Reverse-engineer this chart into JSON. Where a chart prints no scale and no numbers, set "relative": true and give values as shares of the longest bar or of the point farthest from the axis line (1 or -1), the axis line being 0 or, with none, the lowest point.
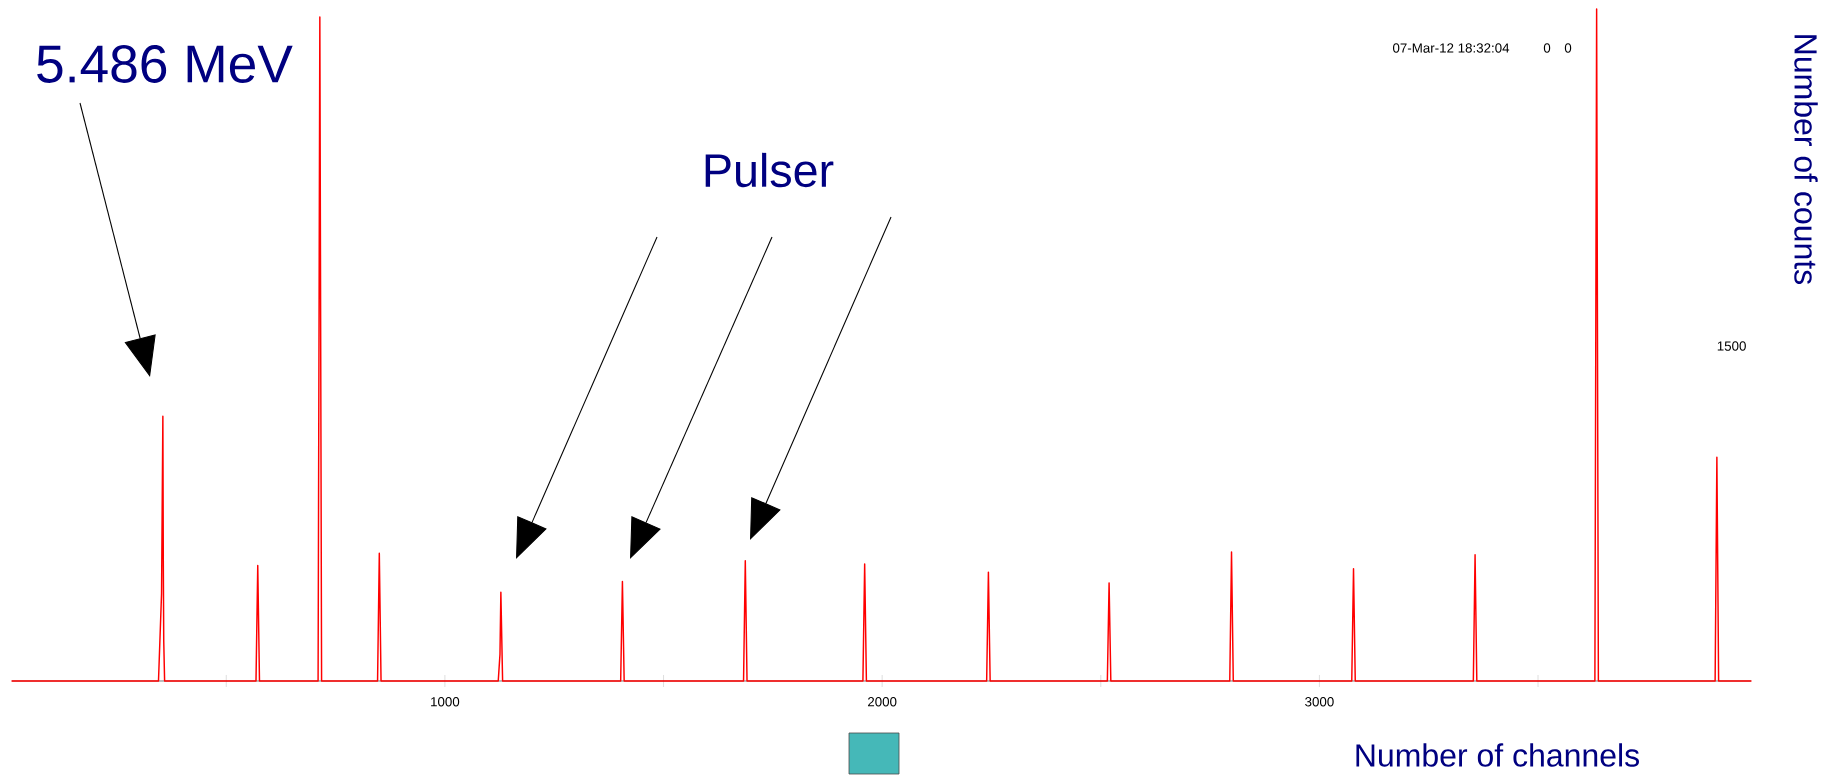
{
  "chart_data": {
    "type": "line",
    "relative": true,
    "xlabel": "Number of channels",
    "ylabel": "Number of counts",
    "xlim": [
      10,
      3987
    ],
    "xticks": [
      {
        "value": 500,
        "label": null
      },
      1000,
      {
        "value": 1500,
        "label": null
      },
      2000,
      {
        "value": 2500,
        "label": null
      },
      3000,
      {
        "value": 3500,
        "label": null
      }
    ],
    "annotations": [
      "5.486 MeV",
      "Pulser",
      "07-Mar-12 18:32:04",
      "0",
      "0",
      "1500"
    ],
    "series": [
      {
        "color": "#ff0000",
        "x": [
          10,
          345,
          352,
          355,
          356,
          357,
          359,
          366,
          568,
          572,
          576,
          710,
          714,
          718,
          846,
          850,
          854,
          1122,
          1126,
          1128,
          1132,
          1402,
          1406,
          1410,
          1683,
          1687,
          1691,
          1956,
          1960,
          1964,
          2239,
          2243,
          2247,
          2515,
          2519,
          2523,
          2795,
          2799,
          2803,
          3074,
          3078,
          3082,
          3352,
          3356,
          3360,
          3630,
          3634,
          3638,
          3905,
          3909,
          3913,
          3987
        ],
        "values": [
          0,
          0,
          0.13,
          0.394,
          0.18,
          0.06,
          0,
          0,
          0,
          0.172,
          0,
          0,
          0.988,
          0,
          0,
          0.19,
          0,
          0,
          0.04,
          0.132,
          0,
          0,
          0.148,
          0,
          0,
          0.179,
          0,
          0,
          0.174,
          0,
          0,
          0.162,
          0,
          0,
          0.146,
          0,
          0,
          0.192,
          0,
          0,
          0.167,
          0,
          0,
          0.188,
          0,
          0,
          1.0,
          0,
          0,
          0.333,
          0,
          0
        ]
      }
    ]
  }
}
